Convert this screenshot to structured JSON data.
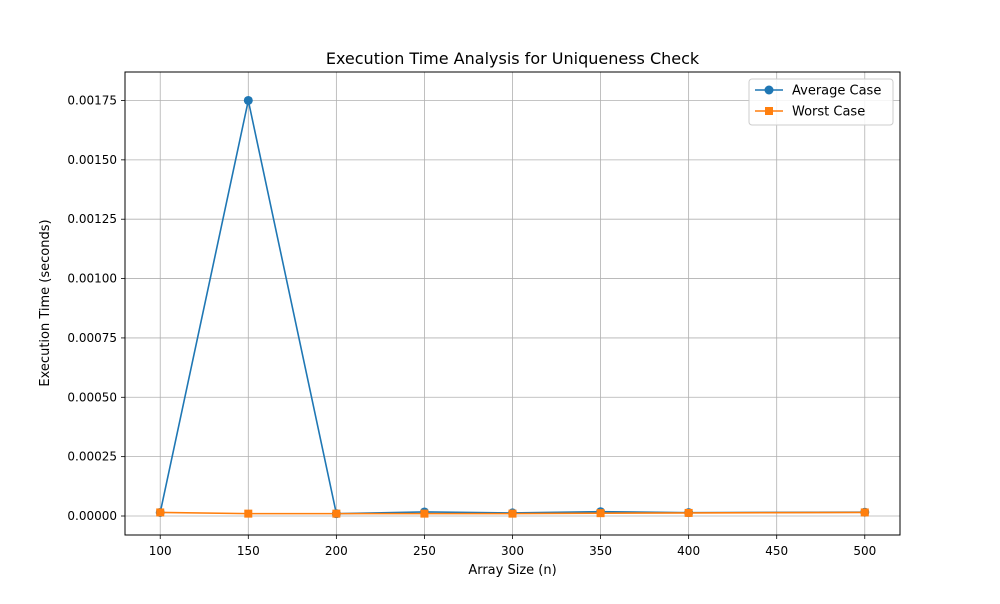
{
  "chart_data": {
    "type": "line",
    "title": "Execution Time Analysis for Uniqueness Check",
    "xlabel": "Array Size (n)",
    "ylabel": "Execution Time (seconds)",
    "xlim": [
      80,
      520
    ],
    "ylim": [
      -8e-05,
      0.00187
    ],
    "xticks": [
      100,
      150,
      200,
      250,
      300,
      350,
      400,
      450,
      500
    ],
    "xtick_labels": [
      "100",
      "150",
      "200",
      "250",
      "300",
      "350",
      "400",
      "450",
      "500"
    ],
    "yticks": [
      0,
      0.00025,
      0.0005,
      0.00075,
      0.001,
      0.00125,
      0.0015,
      0.00175
    ],
    "ytick_labels": [
      "0.00000",
      "0.00025",
      "0.00050",
      "0.00075",
      "0.00100",
      "0.00125",
      "0.00150",
      "0.00175"
    ],
    "grid": true,
    "legend_position": "top-right",
    "series": [
      {
        "name": "Average Case",
        "color": "#1f77b4",
        "marker": "circle",
        "x": [
          100,
          150,
          200,
          250,
          300,
          350,
          400,
          500
        ],
        "y": [
          1.5e-05,
          0.00175,
          1e-05,
          1.7e-05,
          1.3e-05,
          1.8e-05,
          1.4e-05,
          1.6e-05
        ]
      },
      {
        "name": "Worst Case",
        "color": "#ff7f0e",
        "marker": "square",
        "x": [
          100,
          150,
          200,
          250,
          300,
          350,
          400,
          500
        ],
        "y": [
          1.5e-05,
          1e-05,
          1e-05,
          1e-05,
          1e-05,
          1.2e-05,
          1.3e-05,
          1.5e-05
        ]
      }
    ]
  }
}
